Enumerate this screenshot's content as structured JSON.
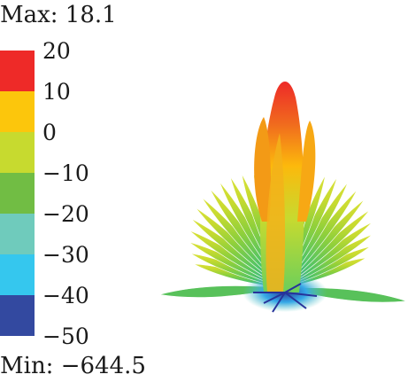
{
  "legend": {
    "max_label": "Max: 18.1",
    "min_label": "Min: −644.5",
    "ticks": [
      "20",
      "10",
      "0",
      "−10",
      "−20",
      "−30",
      "−40",
      "−50"
    ],
    "band_colors": [
      "#ee2a28",
      "#fcc60c",
      "#c7da2f",
      "#71bd44",
      "#6fcbbc",
      "#35c7ee",
      "#3349a0"
    ]
  },
  "chart_data": {
    "type": "other",
    "plot": "3D radiation pattern surface",
    "max": 18.1,
    "min": -644.5,
    "colorbar_range": [
      -50,
      20
    ],
    "colorbar_ticks": [
      20,
      10,
      0,
      -10,
      -20,
      -30,
      -40,
      -50
    ],
    "colorbar_colors": [
      "#ee2a28",
      "#fcc60c",
      "#c7da2f",
      "#71bd44",
      "#6fcbbc",
      "#35c7ee",
      "#3349a0"
    ]
  }
}
